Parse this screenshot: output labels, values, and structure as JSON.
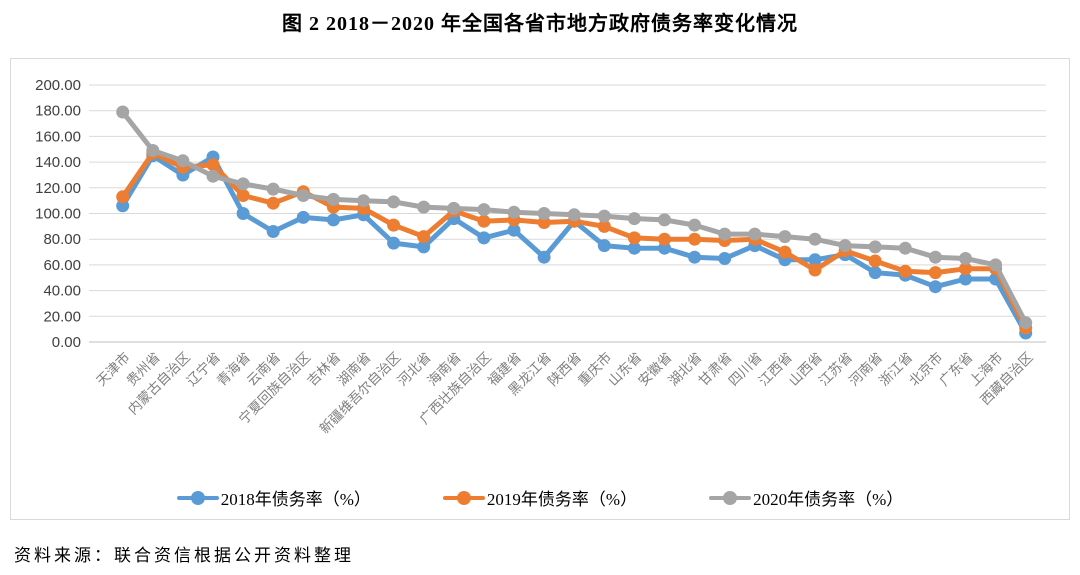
{
  "title": "图 2    2018－2020 年全国各省市地方政府债务率变化情况",
  "source_note": "资料来源：联合资信根据公开资料整理",
  "colors": {
    "series_2018": "#5B9BD5",
    "series_2019": "#ED7D31",
    "series_2020": "#A5A5A5",
    "gridline": "#D9D9D9",
    "axis_line": "#BFBFBF",
    "ytick_text": "#404040",
    "xtick_text": "#7F7F7F"
  },
  "chart_data": {
    "type": "line",
    "title": "图 2 2018－2020 年全国各省市地方政府债务率变化情况",
    "xlabel": "",
    "ylabel": "",
    "ylim": [
      0,
      200
    ],
    "ytick_step": 20,
    "grid": true,
    "legend_position": "bottom",
    "categories": [
      "天津市",
      "贵州省",
      "内蒙古自治区",
      "辽宁省",
      "青海省",
      "云南省",
      "宁夏回族自治区",
      "吉林省",
      "湖南省",
      "新疆维吾尔自治区",
      "河北省",
      "海南省",
      "广西壮族自治区",
      "福建省",
      "黑龙江省",
      "陕西省",
      "重庆市",
      "山东省",
      "安徽省",
      "湖北省",
      "甘肃省",
      "四川省",
      "江西省",
      "山西省",
      "江苏省",
      "河南省",
      "浙江省",
      "北京市",
      "广东省",
      "上海市",
      "西藏自治区"
    ],
    "series": [
      {
        "name": "2018年债务率（%）",
        "color": "#5B9BD5",
        "values": [
          106,
          145,
          130,
          144,
          100,
          86,
          97,
          95,
          99,
          77,
          74,
          96,
          81,
          87,
          66,
          94,
          75,
          73,
          73,
          66,
          65,
          75,
          64,
          64,
          68,
          54,
          52,
          43,
          49,
          49,
          7
        ]
      },
      {
        "name": "2019年债务率（%）",
        "color": "#ED7D31",
        "values": [
          113,
          147,
          136,
          138,
          114,
          108,
          117,
          105,
          104,
          91,
          82,
          102,
          94,
          95,
          93,
          94,
          90,
          81,
          80,
          80,
          79,
          80,
          70,
          56,
          71,
          63,
          55,
          54,
          57,
          57,
          11
        ]
      },
      {
        "name": "2020年债务率（%）",
        "color": "#A5A5A5",
        "values": [
          179,
          149,
          141,
          129,
          123,
          119,
          114,
          111,
          110,
          109,
          105,
          104,
          103,
          101,
          100,
          99,
          98,
          96,
          95,
          91,
          84,
          84,
          82,
          80,
          75,
          74,
          73,
          66,
          65,
          60,
          15
        ]
      }
    ]
  }
}
